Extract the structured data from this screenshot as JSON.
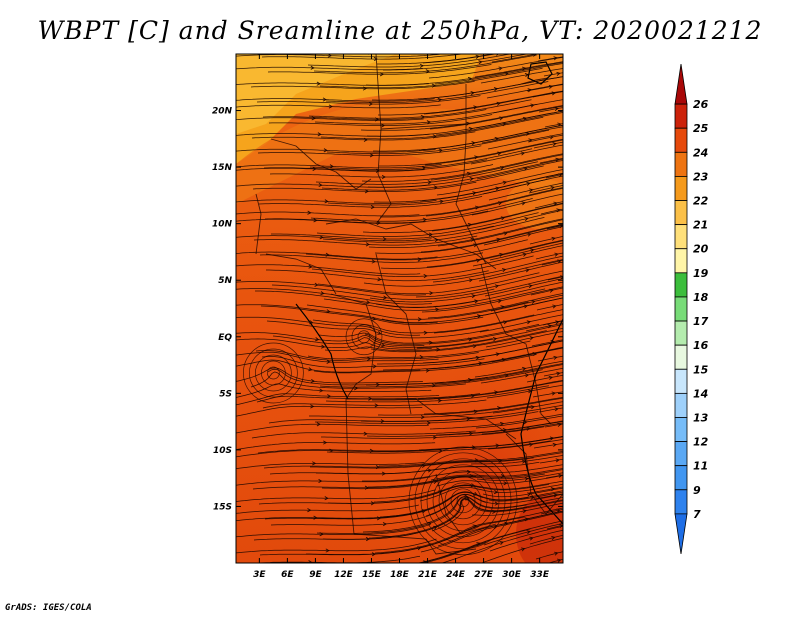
{
  "chart_data": {
    "type": "heatmap",
    "title": "WBPT [C] and Sreamline at 250hPa, VT: 2020021212",
    "variable": "Wet-bulb potential temperature",
    "units": "C",
    "level": "250hPa",
    "valid_time": "2020021212",
    "x_axis": {
      "labels": [
        "3E",
        "6E",
        "9E",
        "12E",
        "15E",
        "18E",
        "21E",
        "24E",
        "27E",
        "30E",
        "33E"
      ],
      "values": [
        3,
        6,
        9,
        12,
        15,
        18,
        21,
        24,
        27,
        30,
        33
      ],
      "range": [
        0.5,
        35.5
      ]
    },
    "y_axis": {
      "labels": [
        "20N",
        "15N",
        "10N",
        "5N",
        "EQ",
        "5S",
        "10S",
        "15S"
      ],
      "values": [
        20,
        15,
        10,
        5,
        0,
        -5,
        -10,
        -15
      ],
      "range": [
        -20,
        25
      ]
    },
    "colorbar": {
      "levels": [
        "7",
        "9",
        "11",
        "12",
        "13",
        "14",
        "15",
        "16",
        "17",
        "18",
        "19",
        "20",
        "21",
        "22",
        "23",
        "24",
        "25",
        "26"
      ],
      "colors": [
        "#1e6ee6",
        "#2e82ee",
        "#4196f0",
        "#5aa8f4",
        "#76bcf8",
        "#9ed0fa",
        "#c8e6fc",
        "#e8f8e0",
        "#b4ecae",
        "#78dc78",
        "#3cbe3c",
        "#fff5a8",
        "#ffe07a",
        "#fbc048",
        "#f59a1c",
        "#ee7412",
        "#e64a0c",
        "#cc220a",
        "#a80808"
      ],
      "extend": "both"
    },
    "field_description": "Values mostly 22-24 C; ~21-22 in far north, 24-25 in southeast",
    "features": [
      "cyclonic circulation near 25E,15S",
      "cyclonic circulation near 5E,3S",
      "westerly flow over northern domain"
    ]
  },
  "footer": "GrADS: IGES/COLA"
}
